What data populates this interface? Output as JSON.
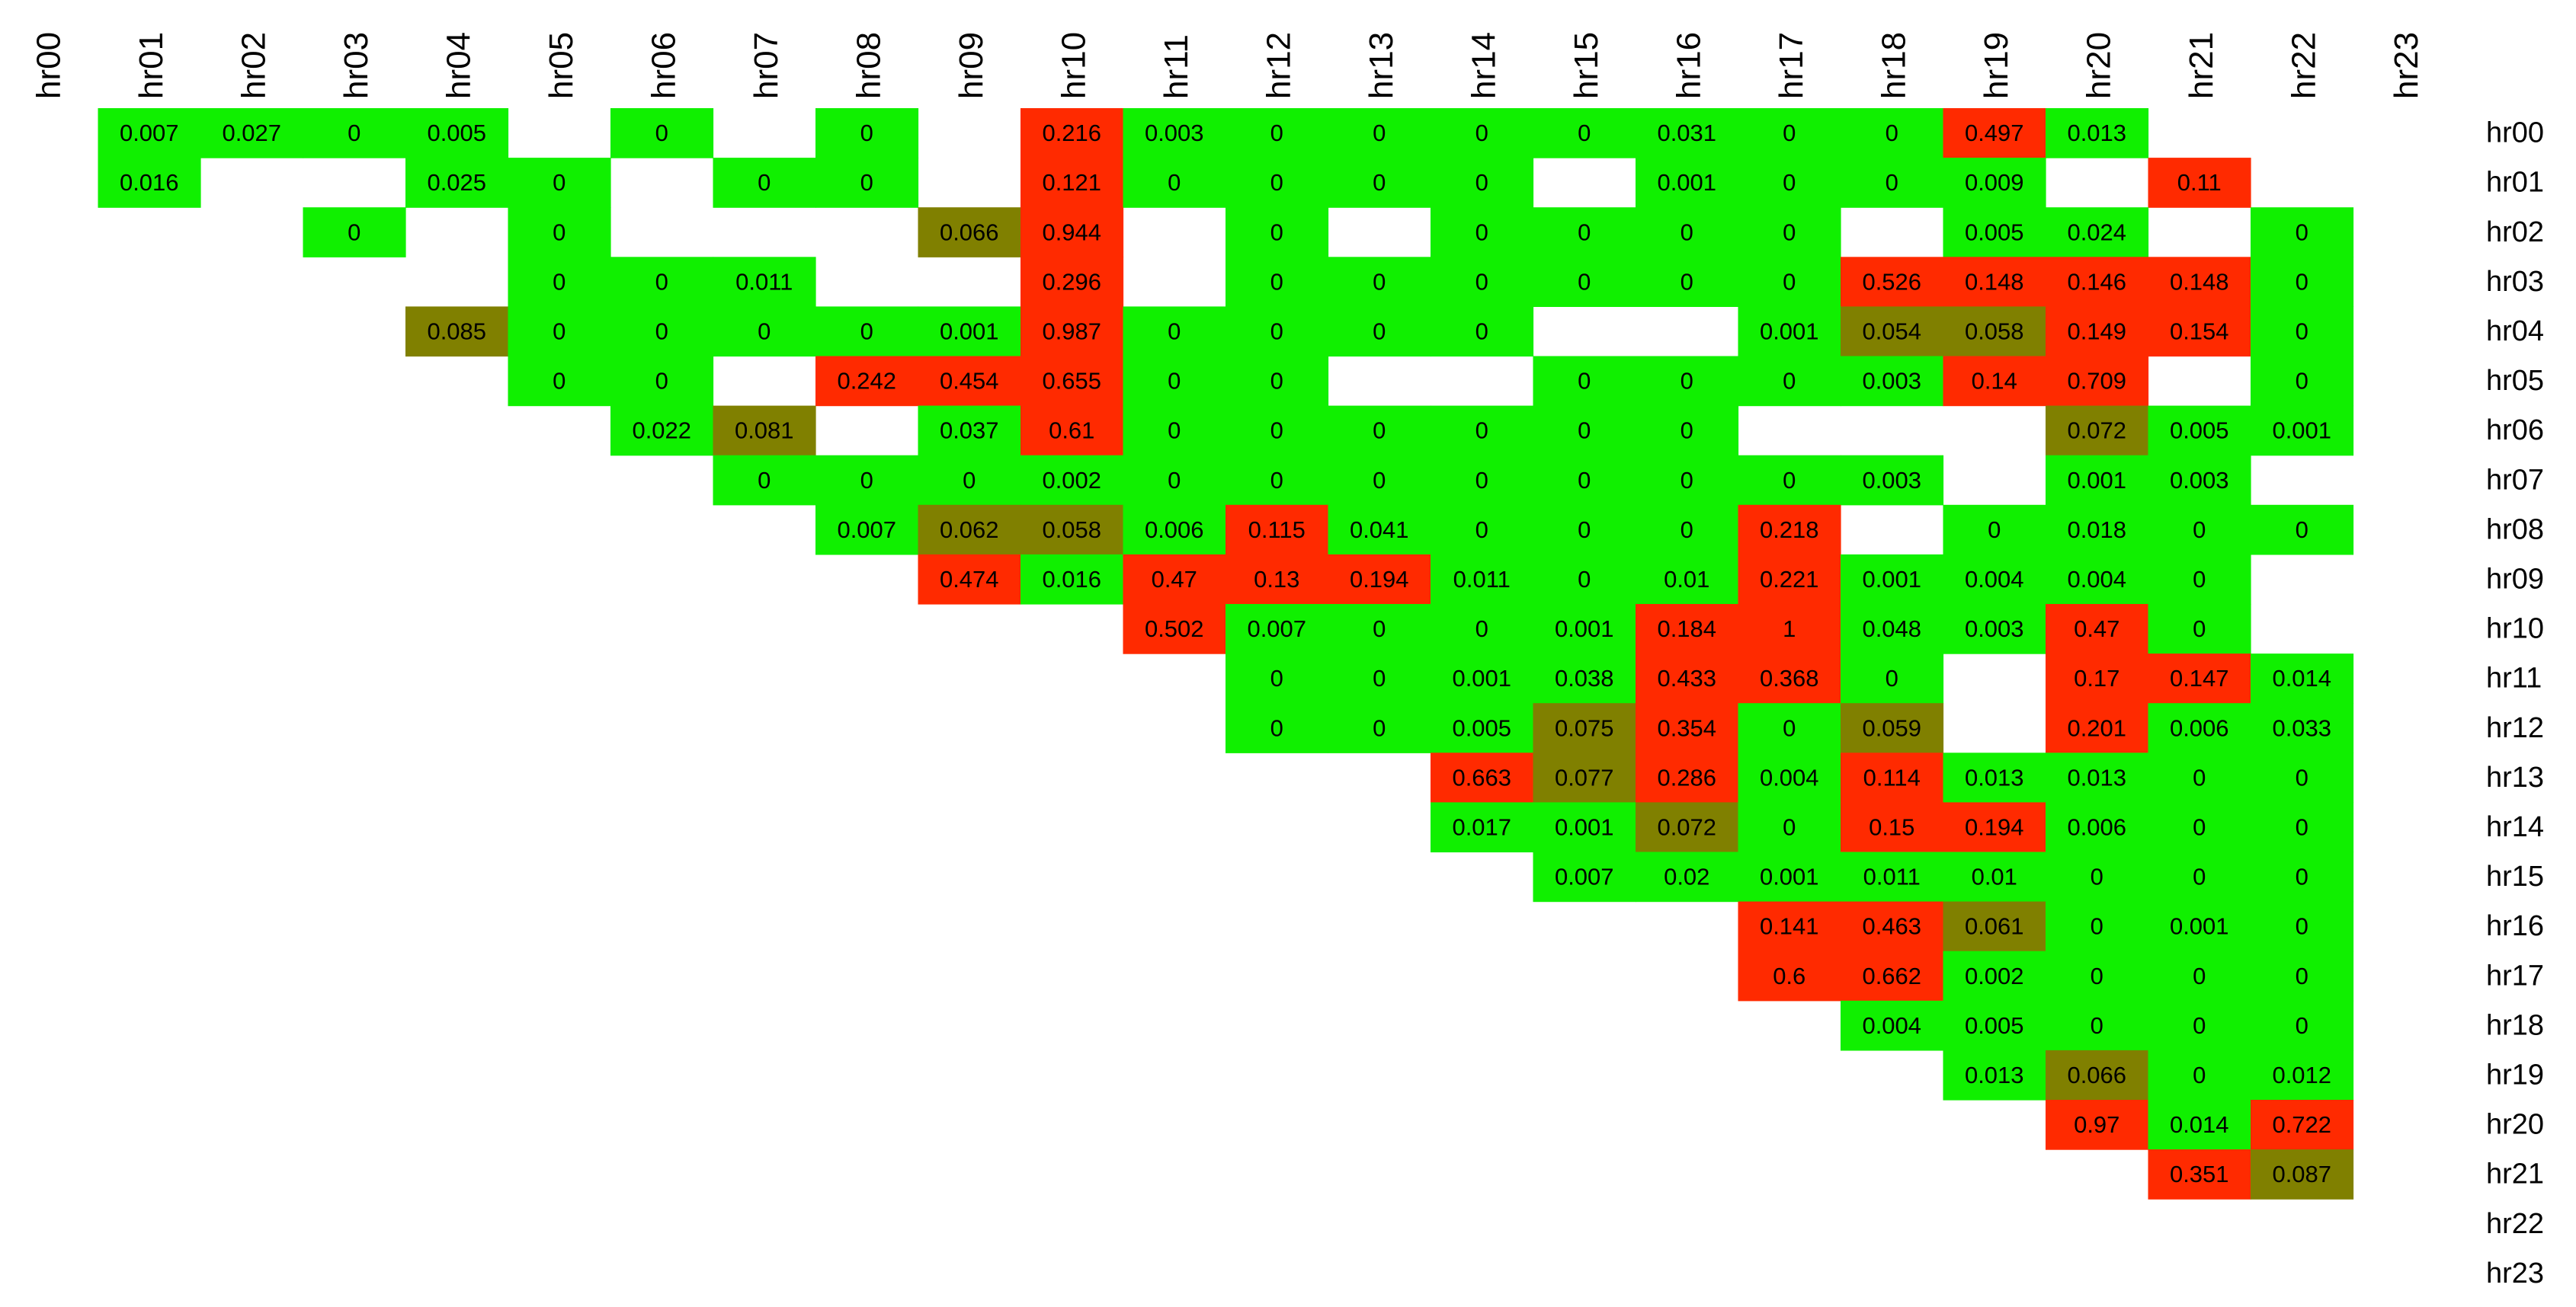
{
  "chart_data": {
    "type": "heatmap",
    "title": "",
    "xlabel": "",
    "ylabel": "",
    "col_labels": [
      "hr00",
      "hr01",
      "hr02",
      "hr03",
      "hr04",
      "hr05",
      "hr06",
      "hr07",
      "hr08",
      "hr09",
      "hr10",
      "hr11",
      "hr12",
      "hr13",
      "hr14",
      "hr15",
      "hr16",
      "hr17",
      "hr18",
      "hr19",
      "hr20",
      "hr21",
      "hr22",
      "hr23"
    ],
    "row_labels": [
      "hr00",
      "hr01",
      "hr02",
      "hr03",
      "hr04",
      "hr05",
      "hr06",
      "hr07",
      "hr08",
      "hr09",
      "hr10",
      "hr11",
      "hr12",
      "hr13",
      "hr14",
      "hr15",
      "hr16",
      "hr17",
      "hr18",
      "hr19",
      "hr20",
      "hr21",
      "hr22",
      "hr23"
    ],
    "colors": {
      "low": "#10F000",
      "mid": "#808000",
      "high": "#FF2A00",
      "empty": "#FFFFFF"
    },
    "color_thresholds": {
      "mid_min": 0.05,
      "high_min": 0.1
    },
    "values": [
      [
        null,
        null,
        "0.007",
        "0.027",
        "0",
        "0.005",
        null,
        "0",
        null,
        "0",
        null,
        "0.216",
        "0.003",
        "0",
        "0",
        "0",
        "0",
        "0.031",
        "0",
        "0",
        "0.497",
        "0.013",
        null,
        null
      ],
      [
        null,
        null,
        "0.016",
        null,
        null,
        "0.025",
        "0",
        null,
        "0",
        "0",
        null,
        "0.121",
        "0",
        "0",
        "0",
        "0",
        null,
        "0.001",
        "0",
        "0",
        "0.009",
        null,
        "0.11",
        null
      ],
      [
        null,
        null,
        null,
        null,
        "0",
        null,
        "0",
        null,
        null,
        null,
        "0.066",
        "0.944",
        null,
        "0",
        null,
        "0",
        "0",
        "0",
        "0",
        null,
        "0.005",
        "0.024",
        null,
        "0"
      ],
      [
        null,
        null,
        null,
        null,
        null,
        null,
        "0",
        "0",
        "0.011",
        null,
        null,
        "0.296",
        null,
        "0",
        "0",
        "0",
        "0",
        "0",
        "0",
        "0.526",
        "0.148",
        "0.146",
        "0.148",
        "0"
      ],
      [
        null,
        null,
        null,
        null,
        null,
        "0.085",
        "0",
        "0",
        "0",
        "0",
        "0.001",
        "0.987",
        "0",
        "0",
        "0",
        "0",
        null,
        null,
        "0.001",
        "0.054",
        "0.058",
        "0.149",
        "0.154",
        "0"
      ],
      [
        null,
        null,
        null,
        null,
        null,
        null,
        "0",
        "0",
        null,
        "0.242",
        "0.454",
        "0.655",
        "0",
        "0",
        null,
        null,
        "0",
        "0",
        "0",
        "0.003",
        "0.14",
        "0.709",
        null,
        "0"
      ],
      [
        null,
        null,
        null,
        null,
        null,
        null,
        null,
        "0.022",
        "0.081",
        null,
        "0.037",
        "0.61",
        "0",
        "0",
        "0",
        "0",
        "0",
        "0",
        null,
        null,
        null,
        "0.072",
        "0.005",
        "0.001"
      ],
      [
        null,
        null,
        null,
        null,
        null,
        null,
        null,
        null,
        "0",
        "0",
        "0",
        "0.002",
        "0",
        "0",
        "0",
        "0",
        "0",
        "0",
        "0",
        "0.003",
        null,
        "0.001",
        "0.003",
        null
      ],
      [
        null,
        null,
        null,
        null,
        null,
        null,
        null,
        null,
        null,
        "0.007",
        "0.062",
        "0.058",
        "0.006",
        "0.115",
        "0.041",
        "0",
        "0",
        "0",
        "0.218",
        null,
        "0",
        "0.018",
        "0",
        "0"
      ],
      [
        null,
        null,
        null,
        null,
        null,
        null,
        null,
        null,
        null,
        null,
        "0.474",
        "0.016",
        "0.47",
        "0.13",
        "0.194",
        "0.011",
        "0",
        "0.01",
        "0.221",
        "0.001",
        "0.004",
        "0.004",
        "0",
        null
      ],
      [
        null,
        null,
        null,
        null,
        null,
        null,
        null,
        null,
        null,
        null,
        null,
        null,
        "0.502",
        "0.007",
        "0",
        "0",
        "0.001",
        "0.184",
        "1",
        "0.048",
        "0.003",
        "0.47",
        "0",
        null
      ],
      [
        null,
        null,
        null,
        null,
        null,
        null,
        null,
        null,
        null,
        null,
        null,
        null,
        null,
        "0",
        "0",
        "0.001",
        "0.038",
        "0.433",
        "0.368",
        "0",
        null,
        "0.17",
        "0.147",
        "0.014"
      ],
      [
        null,
        null,
        null,
        null,
        null,
        null,
        null,
        null,
        null,
        null,
        null,
        null,
        null,
        "0",
        "0",
        "0.005",
        "0.075",
        "0.354",
        "0",
        "0.059",
        null,
        "0.201",
        "0.006",
        "0.033"
      ],
      [
        null,
        null,
        null,
        null,
        null,
        null,
        null,
        null,
        null,
        null,
        null,
        null,
        null,
        null,
        null,
        "0.663",
        "0.077",
        "0.286",
        "0.004",
        "0.114",
        "0.013",
        "0.013",
        "0",
        "0"
      ],
      [
        null,
        null,
        null,
        null,
        null,
        null,
        null,
        null,
        null,
        null,
        null,
        null,
        null,
        null,
        null,
        "0.017",
        "0.001",
        "0.072",
        "0",
        "0.15",
        "0.194",
        "0.006",
        "0",
        "0"
      ],
      [
        null,
        null,
        null,
        null,
        null,
        null,
        null,
        null,
        null,
        null,
        null,
        null,
        null,
        null,
        null,
        null,
        "0.007",
        "0.02",
        "0.001",
        "0.011",
        "0.01",
        "0",
        "0",
        "0"
      ],
      [
        null,
        null,
        null,
        null,
        null,
        null,
        null,
        null,
        null,
        null,
        null,
        null,
        null,
        null,
        null,
        null,
        null,
        null,
        "0.141",
        "0.463",
        "0.061",
        "0",
        "0.001",
        "0"
      ],
      [
        null,
        null,
        null,
        null,
        null,
        null,
        null,
        null,
        null,
        null,
        null,
        null,
        null,
        null,
        null,
        null,
        null,
        null,
        "0.6",
        "0.662",
        "0.002",
        "0",
        "0",
        "0"
      ],
      [
        null,
        null,
        null,
        null,
        null,
        null,
        null,
        null,
        null,
        null,
        null,
        null,
        null,
        null,
        null,
        null,
        null,
        null,
        null,
        "0.004",
        "0.005",
        "0",
        "0",
        "0"
      ],
      [
        null,
        null,
        null,
        null,
        null,
        null,
        null,
        null,
        null,
        null,
        null,
        null,
        null,
        null,
        null,
        null,
        null,
        null,
        null,
        null,
        "0.013",
        "0.066",
        "0",
        "0.012"
      ],
      [
        null,
        null,
        null,
        null,
        null,
        null,
        null,
        null,
        null,
        null,
        null,
        null,
        null,
        null,
        null,
        null,
        null,
        null,
        null,
        null,
        null,
        "0.97",
        "0.014",
        "0.722"
      ],
      [
        null,
        null,
        null,
        null,
        null,
        null,
        null,
        null,
        null,
        null,
        null,
        null,
        null,
        null,
        null,
        null,
        null,
        null,
        null,
        null,
        null,
        null,
        "0.351",
        "0.087"
      ],
      [
        null,
        null,
        null,
        null,
        null,
        null,
        null,
        null,
        null,
        null,
        null,
        null,
        null,
        null,
        null,
        null,
        null,
        null,
        null,
        null,
        null,
        null,
        null,
        null
      ],
      [
        null,
        null,
        null,
        null,
        null,
        null,
        null,
        null,
        null,
        null,
        null,
        null,
        null,
        null,
        null,
        null,
        null,
        null,
        null,
        null,
        null,
        null,
        null,
        null
      ]
    ]
  }
}
